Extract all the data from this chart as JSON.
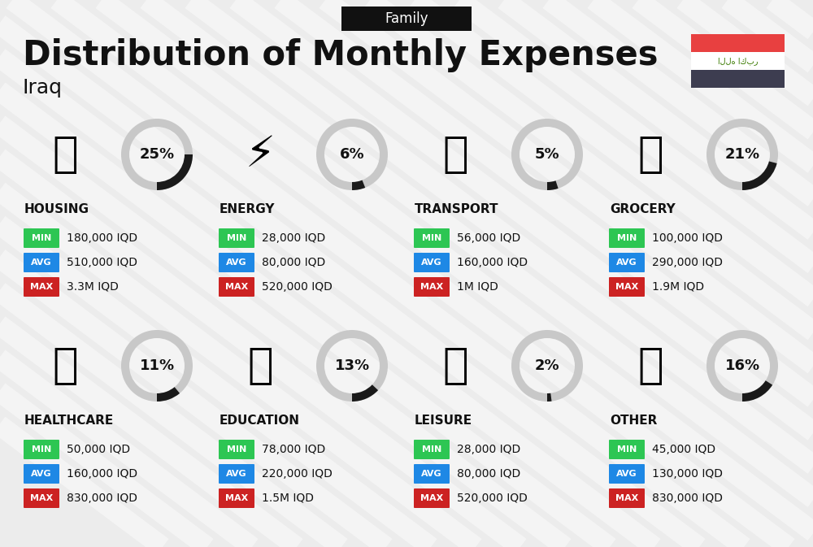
{
  "title": "Distribution of Monthly Expenses",
  "subtitle": "Family",
  "country": "Iraq",
  "bg_color": "#ececec",
  "categories": [
    {
      "name": "HOUSING",
      "pct": 25,
      "min": "180,000 IQD",
      "avg": "510,000 IQD",
      "max": "3.3M IQD",
      "row": 0,
      "col": 0
    },
    {
      "name": "ENERGY",
      "pct": 6,
      "min": "28,000 IQD",
      "avg": "80,000 IQD",
      "max": "520,000 IQD",
      "row": 0,
      "col": 1
    },
    {
      "name": "TRANSPORT",
      "pct": 5,
      "min": "56,000 IQD",
      "avg": "160,000 IQD",
      "max": "1M IQD",
      "row": 0,
      "col": 2
    },
    {
      "name": "GROCERY",
      "pct": 21,
      "min": "100,000 IQD",
      "avg": "290,000 IQD",
      "max": "1.9M IQD",
      "row": 0,
      "col": 3
    },
    {
      "name": "HEALTHCARE",
      "pct": 11,
      "min": "50,000 IQD",
      "avg": "160,000 IQD",
      "max": "830,000 IQD",
      "row": 1,
      "col": 0
    },
    {
      "name": "EDUCATION",
      "pct": 13,
      "min": "78,000 IQD",
      "avg": "220,000 IQD",
      "max": "1.5M IQD",
      "row": 1,
      "col": 1
    },
    {
      "name": "LEISURE",
      "pct": 2,
      "min": "28,000 IQD",
      "avg": "80,000 IQD",
      "max": "520,000 IQD",
      "row": 1,
      "col": 2
    },
    {
      "name": "OTHER",
      "pct": 16,
      "min": "45,000 IQD",
      "avg": "130,000 IQD",
      "max": "830,000 IQD",
      "row": 1,
      "col": 3
    }
  ],
  "color_min": "#2dc653",
  "color_avg": "#1e88e5",
  "color_max": "#cc2222",
  "color_text": "#111111",
  "arc_color_active": "#1a1a1a",
  "arc_color_inactive": "#c8c8c8",
  "flag_red": "#e84040",
  "flag_white": "#ffffff",
  "flag_dark": "#3d3d50",
  "stripe_color": "#ffffff",
  "stripe_alpha": 0.45,
  "stripe_lw": 18
}
